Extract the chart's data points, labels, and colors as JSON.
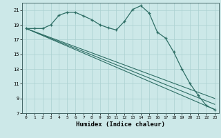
{
  "xlabel": "Humidex (Indice chaleur)",
  "bg_color": "#cce8e8",
  "line_color": "#2e6e65",
  "grid_color": "#aad0d0",
  "xlim": [
    -0.5,
    23.5
  ],
  "ylim": [
    7,
    22
  ],
  "yticks": [
    7,
    9,
    11,
    13,
    15,
    17,
    19,
    21
  ],
  "xticks": [
    0,
    1,
    2,
    3,
    4,
    5,
    6,
    7,
    8,
    9,
    10,
    11,
    12,
    13,
    14,
    15,
    16,
    17,
    18,
    19,
    20,
    21,
    22,
    23
  ],
  "curve1_x": [
    0,
    1,
    2,
    3,
    4,
    5,
    6,
    7,
    8,
    9,
    10,
    11,
    12,
    13,
    14,
    15,
    16,
    17,
    18,
    19,
    20,
    21,
    22,
    23
  ],
  "curve1_y": [
    18.5,
    18.5,
    18.5,
    19.0,
    20.3,
    20.7,
    20.7,
    20.2,
    19.7,
    19.0,
    18.6,
    18.3,
    19.5,
    21.1,
    21.6,
    20.6,
    18.0,
    17.2,
    15.3,
    13.0,
    11.0,
    9.4,
    8.0,
    7.5
  ],
  "line2_x": [
    0,
    23
  ],
  "line2_y": [
    18.5,
    7.5
  ],
  "line3_x": [
    0,
    23
  ],
  "line3_y": [
    18.5,
    8.2
  ],
  "line4_x": [
    0,
    23
  ],
  "line4_y": [
    18.5,
    9.0
  ]
}
